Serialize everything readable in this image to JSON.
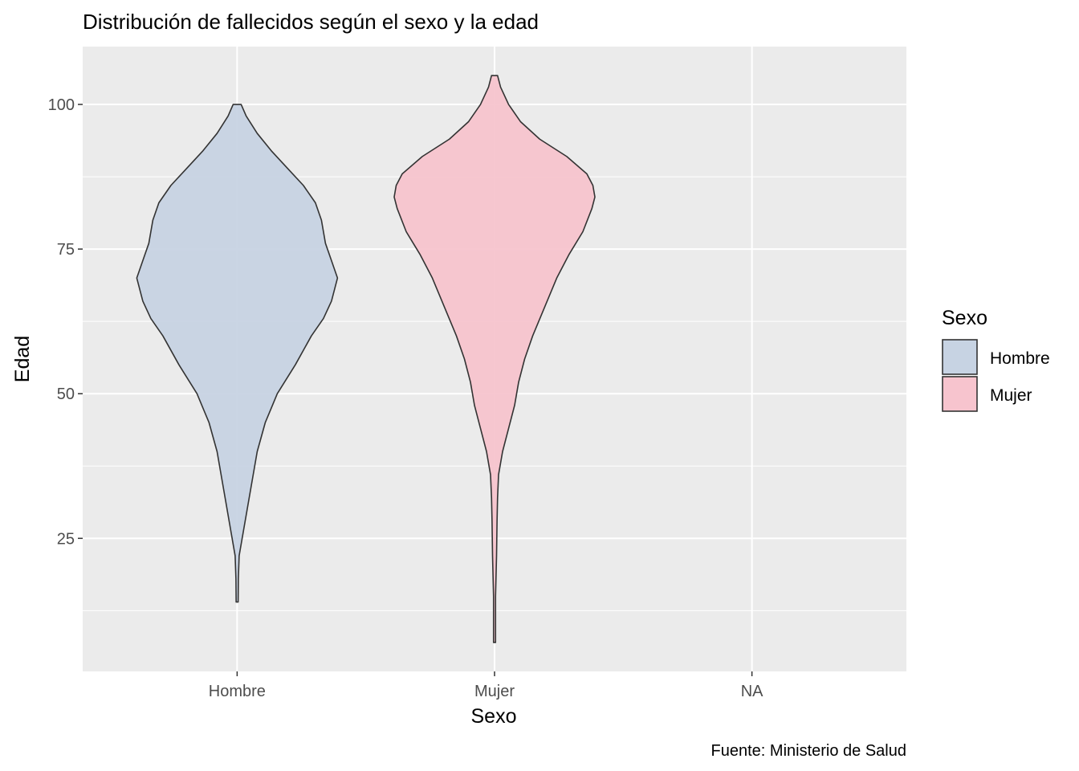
{
  "chart_data": {
    "type": "violin",
    "title": "Distribución de fallecidos según el sexo y la edad",
    "xlabel": "Sexo",
    "ylabel": "Edad",
    "caption": "Fuente: Ministerio de Salud",
    "categories": [
      "Hombre",
      "Mujer",
      "NA"
    ],
    "ylim": [
      2,
      110
    ],
    "yticks": [
      25,
      50,
      75,
      100
    ],
    "grid": true,
    "legend": {
      "title": "Sexo",
      "position": "right",
      "entries": [
        {
          "label": "Hombre",
          "color": "#c7d3e3"
        },
        {
          "label": "Mujer",
          "color": "#f7c4ce"
        }
      ]
    },
    "series": [
      {
        "category": "Hombre",
        "color": "#c7d3e3",
        "min": 14,
        "max": 100,
        "density": [
          [
            14,
            0.01
          ],
          [
            18,
            0.012
          ],
          [
            22,
            0.02
          ],
          [
            26,
            0.06
          ],
          [
            30,
            0.1
          ],
          [
            35,
            0.15
          ],
          [
            40,
            0.2
          ],
          [
            45,
            0.28
          ],
          [
            50,
            0.4
          ],
          [
            55,
            0.58
          ],
          [
            60,
            0.74
          ],
          [
            63,
            0.86
          ],
          [
            66,
            0.94
          ],
          [
            70,
            1.0
          ],
          [
            73,
            0.94
          ],
          [
            76,
            0.88
          ],
          [
            80,
            0.84
          ],
          [
            83,
            0.78
          ],
          [
            86,
            0.66
          ],
          [
            89,
            0.5
          ],
          [
            92,
            0.34
          ],
          [
            95,
            0.2
          ],
          [
            98,
            0.09
          ],
          [
            100,
            0.04
          ]
        ]
      },
      {
        "category": "Mujer",
        "color": "#f7c4ce",
        "min": 7,
        "max": 105,
        "density": [
          [
            7,
            0.01
          ],
          [
            15,
            0.01
          ],
          [
            22,
            0.02
          ],
          [
            28,
            0.025
          ],
          [
            32,
            0.03
          ],
          [
            36,
            0.04
          ],
          [
            40,
            0.08
          ],
          [
            44,
            0.14
          ],
          [
            48,
            0.2
          ],
          [
            52,
            0.24
          ],
          [
            56,
            0.3
          ],
          [
            60,
            0.38
          ],
          [
            65,
            0.5
          ],
          [
            70,
            0.62
          ],
          [
            74,
            0.74
          ],
          [
            78,
            0.88
          ],
          [
            82,
            0.97
          ],
          [
            84,
            1.0
          ],
          [
            86,
            0.98
          ],
          [
            88,
            0.92
          ],
          [
            91,
            0.72
          ],
          [
            94,
            0.45
          ],
          [
            97,
            0.26
          ],
          [
            100,
            0.14
          ],
          [
            103,
            0.06
          ],
          [
            105,
            0.03
          ]
        ]
      }
    ]
  }
}
